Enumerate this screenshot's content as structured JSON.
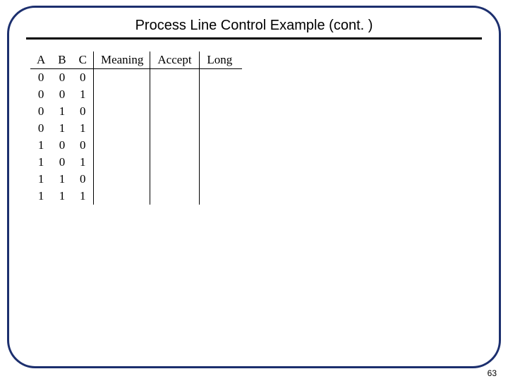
{
  "title": "Process Line Control Example (cont. )",
  "page_number": "63",
  "table": {
    "headers": {
      "a": "A",
      "b": "B",
      "c": "C",
      "meaning": "Meaning",
      "accept": "Accept",
      "long": "Long"
    },
    "rows": [
      {
        "a": "0",
        "b": "0",
        "c": "0",
        "meaning": "",
        "accept": "",
        "long": ""
      },
      {
        "a": "0",
        "b": "0",
        "c": "1",
        "meaning": "",
        "accept": "",
        "long": ""
      },
      {
        "a": "0",
        "b": "1",
        "c": "0",
        "meaning": "",
        "accept": "",
        "long": ""
      },
      {
        "a": "0",
        "b": "1",
        "c": "1",
        "meaning": "",
        "accept": "",
        "long": ""
      },
      {
        "a": "1",
        "b": "0",
        "c": "0",
        "meaning": "",
        "accept": "",
        "long": ""
      },
      {
        "a": "1",
        "b": "0",
        "c": "1",
        "meaning": "",
        "accept": "",
        "long": ""
      },
      {
        "a": "1",
        "b": "1",
        "c": "0",
        "meaning": "",
        "accept": "",
        "long": ""
      },
      {
        "a": "1",
        "b": "1",
        "c": "1",
        "meaning": "",
        "accept": "",
        "long": ""
      }
    ]
  },
  "style": {
    "frame_border_color": "#1c2f6e",
    "frame_border_width": 3,
    "frame_border_radius": 40,
    "title_fontsize": 20,
    "title_color": "#000000",
    "underline_color": "#000000",
    "underline_height": 3,
    "table_font": "Times New Roman",
    "table_fontsize": 17,
    "table_border_color": "#000000",
    "page_number_fontsize": 12,
    "background_color": "#ffffff"
  }
}
